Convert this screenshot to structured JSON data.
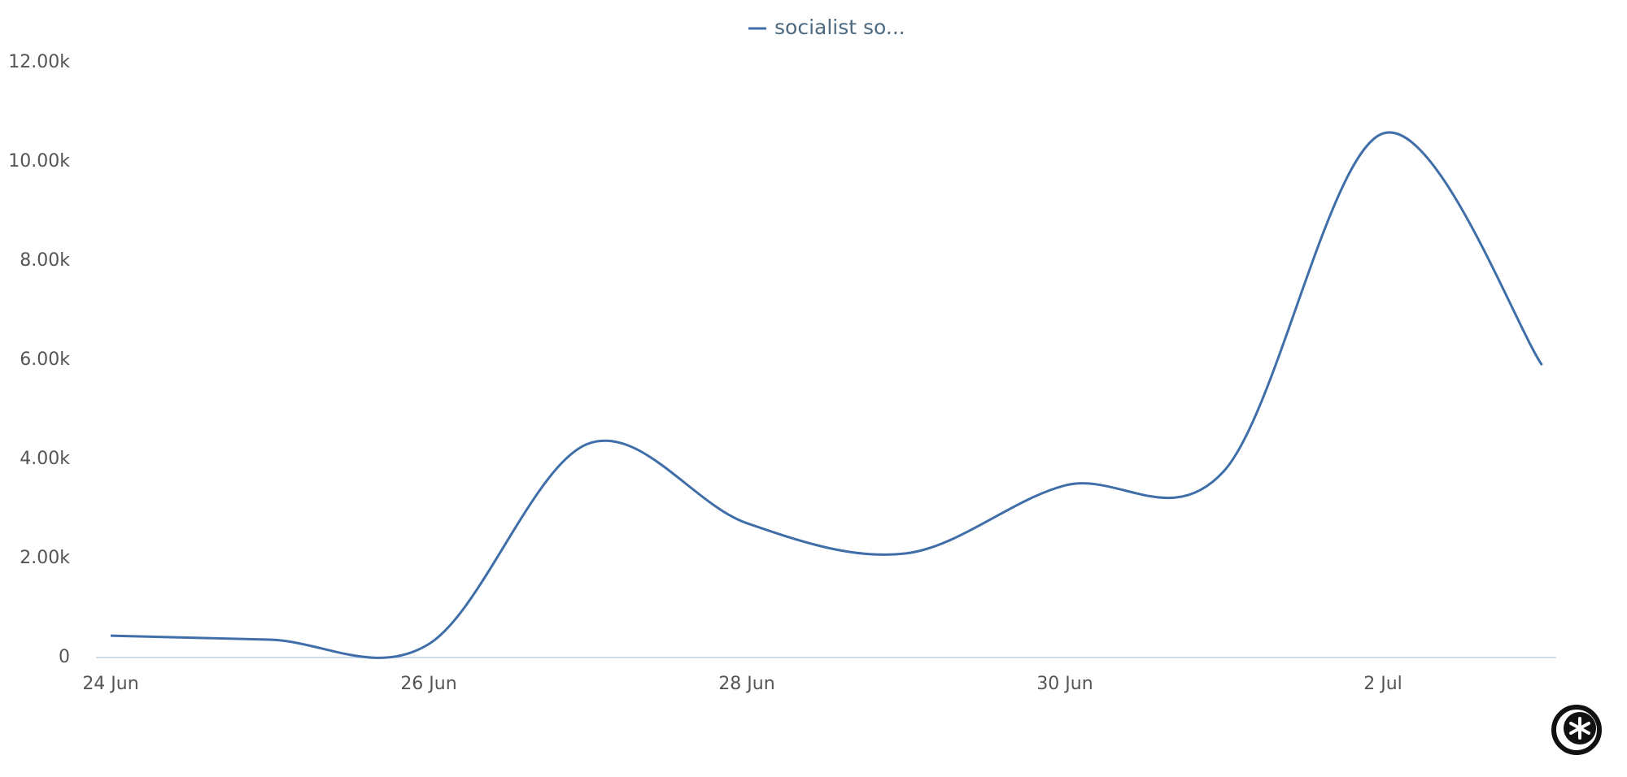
{
  "chart_data": {
    "type": "line",
    "categories": [
      "24 Jun",
      null,
      "26 Jun",
      null,
      "28 Jun",
      null,
      "30 Jun",
      null,
      "2 Jul",
      null
    ],
    "series": [
      {
        "name": "socialist so...",
        "color": "#3f6ea8",
        "values": [
          440,
          360,
          270,
          4310,
          2710,
          2100,
          3470,
          3760,
          10570,
          5900
        ]
      }
    ],
    "ylim": [
      0,
      12000
    ],
    "yticks": [
      0,
      {
        "value": 2000,
        "label": "2.00k"
      },
      {
        "value": 4000,
        "label": "4.00k"
      },
      {
        "value": 6000,
        "label": "6.00k"
      },
      {
        "value": 8000,
        "label": "8.00k"
      },
      {
        "value": 10000,
        "label": "10.00k"
      },
      {
        "value": 12000,
        "label": "12.00k"
      }
    ],
    "grid": false
  }
}
